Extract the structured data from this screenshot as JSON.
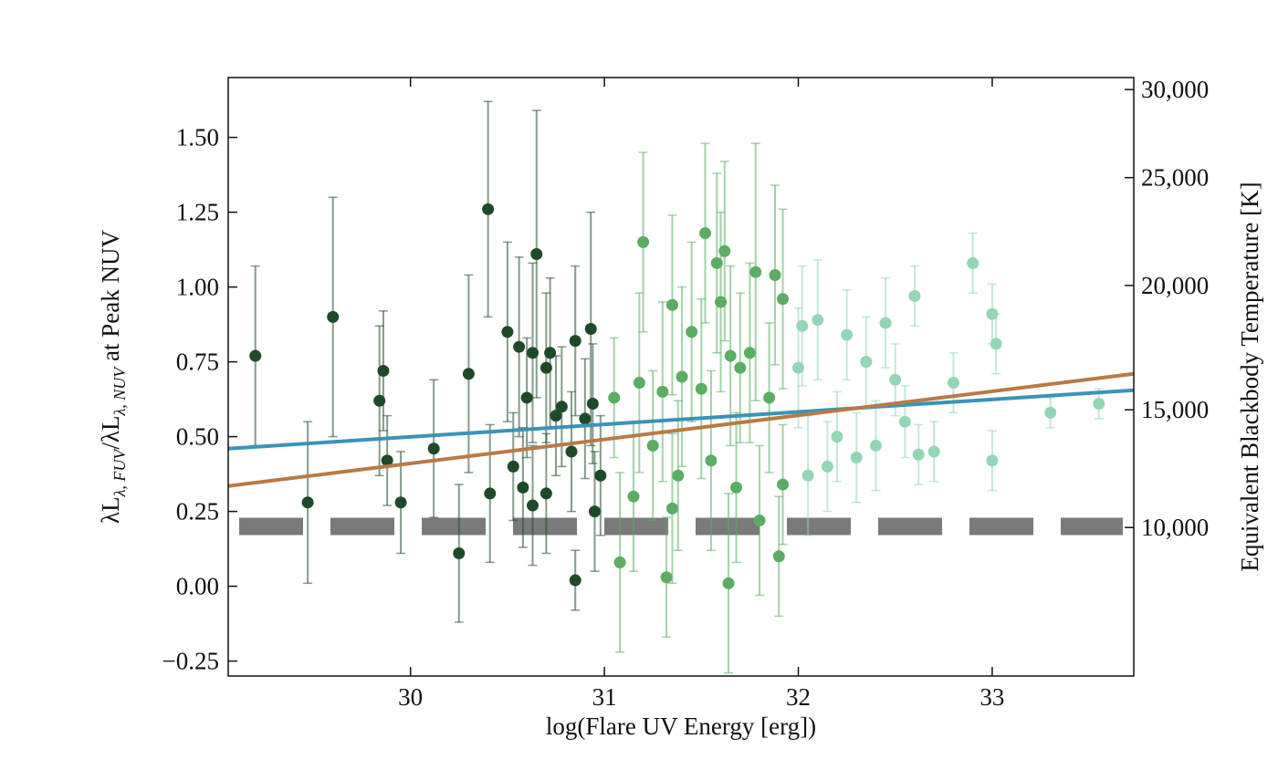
{
  "chart_data": {
    "type": "scatter",
    "xlabel": "log(Flare UV Energy [erg])",
    "ylabel_parts": [
      "λL",
      "λ, FUV",
      "/λL",
      "λ, NUV",
      " at Peak NUV"
    ],
    "y2label": "Equivalent Blackbody Temperature [K]",
    "xlim": [
      29.06,
      33.73
    ],
    "ylim": [
      -0.3,
      1.7
    ],
    "xticks": [
      30,
      31,
      32,
      33
    ],
    "yticks": [
      {
        "value": -0.25,
        "label": "−0.25"
      },
      {
        "value": 0,
        "label": "0.00"
      },
      0.25,
      {
        "value": 0.5,
        "label": "0.50"
      },
      0.75,
      {
        "value": 1,
        "label": "1.00"
      },
      1.25,
      {
        "value": 1.5,
        "label": "1.50"
      }
    ],
    "y2ticks": [
      {
        "value": 10000,
        "label": "10,000"
      },
      {
        "value": 15000,
        "label": "15,000"
      },
      {
        "value": 20000,
        "label": "20,000"
      },
      {
        "value": 25000,
        "label": "25,000"
      },
      {
        "value": 30000,
        "label": "30,000"
      }
    ],
    "hline": {
      "value": 0.2,
      "color": "#7a7a7a"
    },
    "fit_lines": [
      {
        "color": "#3a93b8",
        "x": [
          29.06,
          33.73
        ],
        "values": [
          0.46,
          0.655
        ]
      },
      {
        "color": "#b87a45",
        "x": [
          29.06,
          33.73
        ],
        "values": [
          0.335,
          0.71
        ]
      }
    ],
    "series": [
      {
        "color": "#1f4a2a",
        "x": [
          29.2,
          29.47,
          29.6,
          29.84,
          29.86,
          29.88,
          29.95,
          30.12,
          30.25,
          30.3,
          30.4,
          30.41,
          30.5,
          30.53,
          30.56,
          30.58,
          30.6,
          30.63,
          30.63,
          30.65,
          30.7,
          30.7,
          30.72,
          30.75,
          30.78,
          30.83,
          30.85,
          30.85,
          30.9,
          30.93,
          30.94,
          30.95,
          30.98
        ],
        "values": [
          0.77,
          0.28,
          0.9,
          0.62,
          0.72,
          0.42,
          0.28,
          0.46,
          0.11,
          0.71,
          1.26,
          0.31,
          0.85,
          0.4,
          0.8,
          0.33,
          0.63,
          0.78,
          0.27,
          1.11,
          0.73,
          0.31,
          0.78,
          0.57,
          0.6,
          0.45,
          0.82,
          0.02,
          0.56,
          0.86,
          0.61,
          0.25,
          0.37
        ],
        "errors": [
          0.3,
          0.27,
          0.4,
          0.25,
          0.2,
          0.15,
          0.17,
          0.23,
          0.23,
          0.33,
          0.36,
          0.23,
          0.3,
          0.18,
          0.3,
          0.2,
          0.2,
          0.3,
          0.2,
          0.48,
          0.25,
          0.2,
          0.25,
          0.2,
          0.2,
          0.2,
          0.25,
          0.1,
          0.2,
          0.39,
          0.2,
          0.2,
          0.2
        ]
      },
      {
        "color": "#5aad62",
        "x": [
          31.05,
          31.08,
          31.15,
          31.18,
          31.2,
          31.25,
          31.3,
          31.32,
          31.35,
          31.35,
          31.38,
          31.4,
          31.45,
          31.5,
          31.52,
          31.55,
          31.58,
          31.6,
          31.62,
          31.64,
          31.65,
          31.68,
          31.7,
          31.75,
          31.78,
          31.8,
          31.85,
          31.88,
          31.9,
          31.92,
          31.92
        ],
        "values": [
          0.63,
          0.08,
          0.3,
          0.68,
          1.15,
          0.47,
          0.65,
          0.03,
          0.94,
          0.26,
          0.37,
          0.7,
          0.85,
          0.66,
          1.18,
          0.42,
          1.08,
          0.95,
          1.12,
          0.01,
          0.77,
          0.33,
          0.73,
          0.78,
          1.05,
          0.22,
          0.63,
          1.04,
          0.1,
          0.96,
          0.34
        ],
        "errors": [
          0.2,
          0.3,
          0.25,
          0.3,
          0.3,
          0.25,
          0.3,
          0.2,
          0.3,
          0.25,
          0.25,
          0.3,
          0.3,
          0.3,
          0.3,
          0.3,
          0.3,
          0.3,
          0.3,
          0.3,
          0.3,
          0.25,
          0.25,
          0.3,
          0.43,
          0.25,
          0.25,
          0.3,
          0.2,
          0.3,
          0.2
        ]
      },
      {
        "color": "#93d6b6",
        "x": [
          32.0,
          32.02,
          32.05,
          32.1,
          32.15,
          32.2,
          32.25,
          32.3,
          32.35,
          32.4,
          32.45,
          32.5,
          32.55,
          32.6,
          32.62,
          32.7,
          32.8,
          32.9,
          33.0,
          33.0,
          33.02,
          33.3,
          33.55
        ],
        "values": [
          0.73,
          0.87,
          0.37,
          0.89,
          0.4,
          0.5,
          0.84,
          0.43,
          0.75,
          0.47,
          0.88,
          0.69,
          0.55,
          0.97,
          0.44,
          0.45,
          0.68,
          1.08,
          0.91,
          0.42,
          0.81,
          0.58,
          0.61
        ],
        "errors": [
          0.2,
          0.2,
          0.2,
          0.2,
          0.15,
          0.15,
          0.15,
          0.15,
          0.15,
          0.15,
          0.15,
          0.12,
          0.12,
          0.1,
          0.1,
          0.1,
          0.1,
          0.1,
          0.1,
          0.1,
          0.1,
          0.05,
          0.05
        ]
      }
    ]
  }
}
